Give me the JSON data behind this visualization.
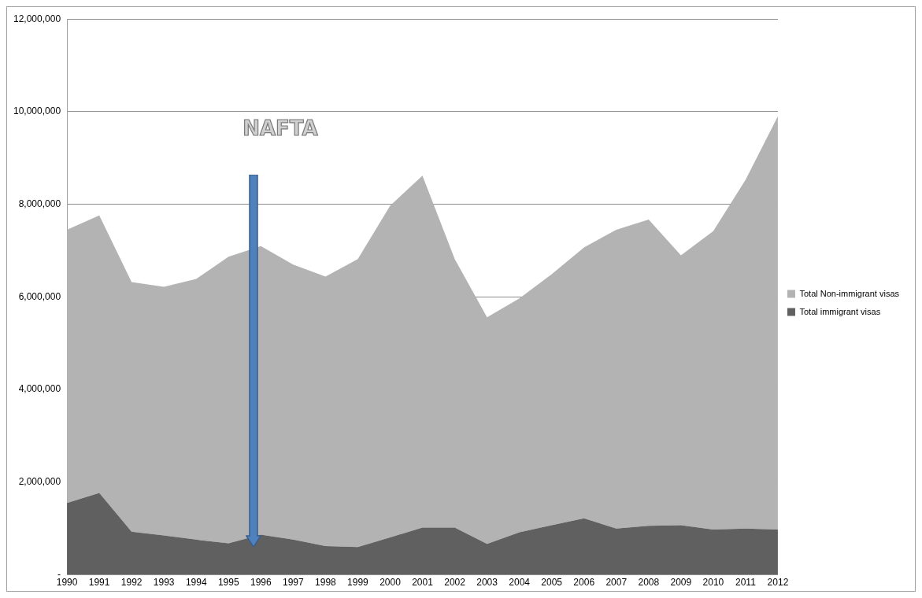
{
  "chart_data": {
    "type": "area",
    "stacked": true,
    "categories": [
      "1990",
      "1991",
      "1992",
      "1993",
      "1994",
      "1995",
      "1996",
      "1997",
      "1998",
      "1999",
      "2000",
      "2001",
      "2002",
      "2003",
      "2004",
      "2005",
      "2006",
      "2007",
      "2008",
      "2009",
      "2010",
      "2011",
      "2012"
    ],
    "series": [
      {
        "name": "Total immigrant visas",
        "color": "#606060",
        "values": [
          1550000,
          1770000,
          930000,
          850000,
          760000,
          680000,
          870000,
          760000,
          620000,
          600000,
          810000,
          1020000,
          1020000,
          670000,
          920000,
          1070000,
          1220000,
          1000000,
          1060000,
          1070000,
          980000,
          1000000,
          980000
        ]
      },
      {
        "name": "Total Non-immigrant visas",
        "color": "#b3b3b3",
        "values": [
          5900000,
          5990000,
          5390000,
          5370000,
          5630000,
          6190000,
          6230000,
          5940000,
          5820000,
          6220000,
          7160000,
          7600000,
          5800000,
          4890000,
          5050000,
          5420000,
          5850000,
          6450000,
          6610000,
          5830000,
          6440000,
          7530000,
          8920000
        ]
      }
    ],
    "ylim": [
      0,
      12000000
    ],
    "yticks": [
      {
        "value": 0,
        "label": "-"
      },
      {
        "value": 2000000,
        "label": "2,000,000"
      },
      {
        "value": 4000000,
        "label": "4,000,000"
      },
      {
        "value": 6000000,
        "label": "6,000,000"
      },
      {
        "value": 8000000,
        "label": "8,000,000"
      },
      {
        "value": 10000000,
        "label": "10,000,000"
      },
      {
        "value": 12000000,
        "label": "12,000,000"
      }
    ],
    "grid": "y",
    "legend": "right",
    "annotations": [
      "NAFTA"
    ]
  }
}
